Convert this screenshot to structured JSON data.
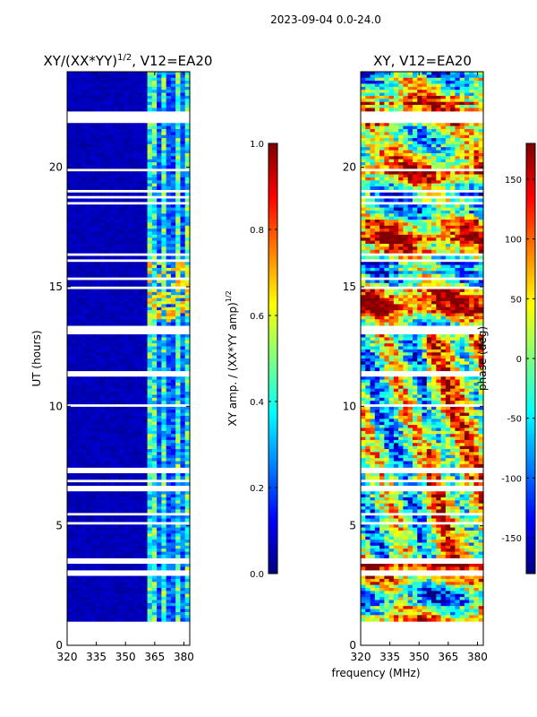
{
  "suptitle": "2023-09-04 0.0-24.0",
  "shared_xlabel": "frequency (MHz)",
  "chart_data": [
    {
      "type": "heatmap",
      "title": "XY/(XX*YY)^(1/2), V12=EA20",
      "title_main": "XY/(XX*YY)",
      "title_sup": "1/2",
      "title_tail": ", V12=EA20",
      "xlabel": "",
      "ylabel": "UT (hours)",
      "xlim": [
        320,
        383
      ],
      "ylim": [
        0,
        24
      ],
      "x_ticks": [
        320,
        335,
        350,
        365,
        380
      ],
      "y_ticks": [
        0,
        5,
        10,
        15,
        20
      ],
      "colorbar": {
        "label": "XY amp. / (XX*YY amp)^(1/2)",
        "label_main": "XY amp. / (XX*YY amp)",
        "label_sup": "1/2",
        "range": [
          0.0,
          1.0
        ],
        "ticks": [
          "0.0",
          "0.2",
          "0.4",
          "0.6",
          "0.8",
          "1.0"
        ],
        "colormap": "jet"
      }
    },
    {
      "type": "heatmap",
      "title": "XY, V12=EA20",
      "xlabel": "frequency (MHz)",
      "ylabel": "",
      "xlim": [
        320,
        383
      ],
      "ylim": [
        0,
        24
      ],
      "x_ticks": [
        320,
        335,
        350,
        365,
        380
      ],
      "y_ticks": [
        0,
        5,
        10,
        15,
        20
      ],
      "colorbar": {
        "label": "phase (deg)",
        "range": [
          -180,
          180
        ],
        "ticks": [
          "-150",
          "-100",
          "-50",
          "0",
          "50",
          "100",
          "150"
        ],
        "colormap": "jet"
      }
    }
  ]
}
